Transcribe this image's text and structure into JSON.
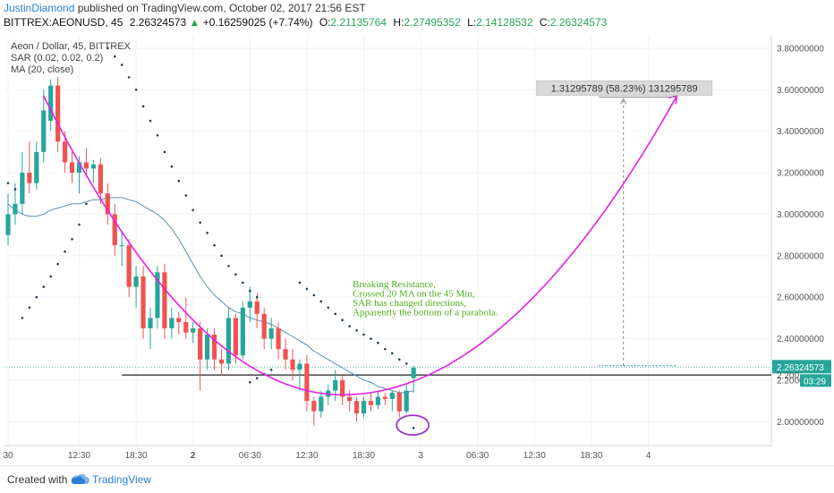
{
  "header": {
    "author": "JustinDiamond",
    "published_text": "published on TradingView.com, October 02, 2017 21:56 EST",
    "symbol": "BITTREX:AEONUSD, 45",
    "last": "2.26324573",
    "change_arrow": "▲",
    "change": "+0.16259025 (+7.74%)",
    "o_label": "O:",
    "o_value": "2.21135764",
    "h_label": "H:",
    "h_value": "2.27495352",
    "l_label": "L:",
    "l_value": "2.14128532",
    "c_label": "C:",
    "c_value": "2.26324573"
  },
  "footer": {
    "created_with": "Created with",
    "brand": "TradingView",
    "logo_icon": "tradingview-cloud-icon"
  },
  "colors": {
    "up": "#26a69a",
    "down": "#ef5350",
    "ma": "#5b8fb0",
    "sar": "#1f3d5c",
    "parabola": "#e61fe6",
    "annotation": "#4caf1a",
    "support": "#222222",
    "price_label_bg": "#26a69a",
    "circle": "#9b30d0"
  },
  "chart_data": {
    "type": "candlestick",
    "legend": [
      "Aeon / Dollar, 45, BITTREX",
      "SAR (0.02, 0.02, 0.2)",
      "MA (20, close)"
    ],
    "y_axis": {
      "ticks": [
        "2.00000000",
        "2.20000000",
        "2.40000000",
        "2.60000000",
        "2.80000000",
        "3.00000000",
        "3.20000000",
        "3.40000000",
        "3.60000000",
        "3.80000000"
      ],
      "tick_values": [
        2.0,
        2.2,
        2.4,
        2.6,
        2.8,
        3.0,
        3.2,
        3.4,
        3.6,
        3.8
      ],
      "range": [
        1.885,
        3.86
      ]
    },
    "x_axis": {
      "ticks": [
        "30",
        "12:30",
        "18:30",
        "2",
        "06:30",
        "12:30",
        "18:30",
        "3",
        "06:30",
        "12:30",
        "18:30",
        "4"
      ],
      "tick_bar_index": [
        0,
        10,
        18,
        26,
        34,
        42,
        50,
        58,
        66,
        74,
        82,
        90
      ],
      "bold_ticks": [
        "2"
      ]
    },
    "candles": [
      {
        "o": 2.9,
        "h": 3.1,
        "l": 2.85,
        "c": 3.0
      },
      {
        "o": 3.0,
        "h": 3.15,
        "l": 2.95,
        "c": 3.05
      },
      {
        "o": 3.05,
        "h": 3.3,
        "l": 3.0,
        "c": 3.2
      },
      {
        "o": 3.2,
        "h": 3.35,
        "l": 3.1,
        "c": 3.15
      },
      {
        "o": 3.15,
        "h": 3.35,
        "l": 3.12,
        "c": 3.3
      },
      {
        "o": 3.3,
        "h": 3.6,
        "l": 3.25,
        "c": 3.5
      },
      {
        "o": 3.45,
        "h": 3.65,
        "l": 3.4,
        "c": 3.62
      },
      {
        "o": 3.62,
        "h": 3.66,
        "l": 3.3,
        "c": 3.35
      },
      {
        "o": 3.35,
        "h": 3.4,
        "l": 3.2,
        "c": 3.25
      },
      {
        "o": 3.25,
        "h": 3.3,
        "l": 3.15,
        "c": 3.2
      },
      {
        "o": 3.2,
        "h": 3.28,
        "l": 3.1,
        "c": 3.25
      },
      {
        "o": 3.25,
        "h": 3.32,
        "l": 3.18,
        "c": 3.22
      },
      {
        "o": 3.22,
        "h": 3.26,
        "l": 3.15,
        "c": 3.24
      },
      {
        "o": 3.24,
        "h": 3.27,
        "l": 3.05,
        "c": 3.1
      },
      {
        "o": 3.1,
        "h": 3.15,
        "l": 2.95,
        "c": 3.0
      },
      {
        "o": 3.0,
        "h": 3.05,
        "l": 2.8,
        "c": 2.85
      },
      {
        "o": 2.85,
        "h": 2.92,
        "l": 2.75,
        "c": 2.85
      },
      {
        "o": 2.85,
        "h": 2.88,
        "l": 2.6,
        "c": 2.65
      },
      {
        "o": 2.65,
        "h": 2.75,
        "l": 2.55,
        "c": 2.7
      },
      {
        "o": 2.7,
        "h": 2.75,
        "l": 2.4,
        "c": 2.45
      },
      {
        "o": 2.45,
        "h": 2.55,
        "l": 2.35,
        "c": 2.5
      },
      {
        "o": 2.5,
        "h": 2.75,
        "l": 2.45,
        "c": 2.72
      },
      {
        "o": 2.72,
        "h": 2.76,
        "l": 2.4,
        "c": 2.45
      },
      {
        "o": 2.45,
        "h": 2.55,
        "l": 2.4,
        "c": 2.5
      },
      {
        "o": 2.5,
        "h": 2.53,
        "l": 2.42,
        "c": 2.48
      },
      {
        "o": 2.48,
        "h": 2.6,
        "l": 2.4,
        "c": 2.43
      },
      {
        "o": 2.43,
        "h": 2.48,
        "l": 2.38,
        "c": 2.45
      },
      {
        "o": 2.45,
        "h": 2.48,
        "l": 2.15,
        "c": 2.3
      },
      {
        "o": 2.3,
        "h": 2.45,
        "l": 2.25,
        "c": 2.42
      },
      {
        "o": 2.42,
        "h": 2.45,
        "l": 2.25,
        "c": 2.3
      },
      {
        "o": 2.3,
        "h": 2.35,
        "l": 2.22,
        "c": 2.28
      },
      {
        "o": 2.28,
        "h": 2.55,
        "l": 2.25,
        "c": 2.5
      },
      {
        "o": 2.5,
        "h": 2.52,
        "l": 2.28,
        "c": 2.32
      },
      {
        "o": 2.32,
        "h": 2.58,
        "l": 2.3,
        "c": 2.55
      },
      {
        "o": 2.55,
        "h": 2.65,
        "l": 2.48,
        "c": 2.58
      },
      {
        "o": 2.58,
        "h": 2.62,
        "l": 2.45,
        "c": 2.52
      },
      {
        "o": 2.52,
        "h": 2.55,
        "l": 2.35,
        "c": 2.4
      },
      {
        "o": 2.4,
        "h": 2.5,
        "l": 2.35,
        "c": 2.45
      },
      {
        "o": 2.45,
        "h": 2.48,
        "l": 2.3,
        "c": 2.35
      },
      {
        "o": 2.35,
        "h": 2.4,
        "l": 2.25,
        "c": 2.3
      },
      {
        "o": 2.3,
        "h": 2.35,
        "l": 2.2,
        "c": 2.25
      },
      {
        "o": 2.25,
        "h": 2.3,
        "l": 2.15,
        "c": 2.28
      },
      {
        "o": 2.28,
        "h": 2.32,
        "l": 2.05,
        "c": 2.1
      },
      {
        "o": 2.1,
        "h": 2.12,
        "l": 1.98,
        "c": 2.05
      },
      {
        "o": 2.05,
        "h": 2.15,
        "l": 2.02,
        "c": 2.12
      },
      {
        "o": 2.12,
        "h": 2.18,
        "l": 2.08,
        "c": 2.15
      },
      {
        "o": 2.15,
        "h": 2.25,
        "l": 2.1,
        "c": 2.2
      },
      {
        "o": 2.2,
        "h": 2.22,
        "l": 2.08,
        "c": 2.12
      },
      {
        "o": 2.12,
        "h": 2.15,
        "l": 2.05,
        "c": 2.1
      },
      {
        "o": 2.1,
        "h": 2.12,
        "l": 2.0,
        "c": 2.04
      },
      {
        "o": 2.04,
        "h": 2.12,
        "l": 2.02,
        "c": 2.1
      },
      {
        "o": 2.1,
        "h": 2.14,
        "l": 2.05,
        "c": 2.08
      },
      {
        "o": 2.08,
        "h": 2.15,
        "l": 2.06,
        "c": 2.12
      },
      {
        "o": 2.12,
        "h": 2.14,
        "l": 2.08,
        "c": 2.11
      },
      {
        "o": 2.11,
        "h": 2.15,
        "l": 2.05,
        "c": 2.14
      },
      {
        "o": 2.14,
        "h": 2.15,
        "l": 2.02,
        "c": 2.05
      },
      {
        "o": 2.05,
        "h": 2.18,
        "l": 2.04,
        "c": 2.15
      },
      {
        "o": 2.21,
        "h": 2.27,
        "l": 2.14,
        "c": 2.26
      }
    ],
    "ma": [
      3.05,
      3.02,
      3.0,
      2.99,
      2.99,
      3.0,
      3.02,
      3.03,
      3.04,
      3.05,
      3.05,
      3.06,
      3.07,
      3.07,
      3.08,
      3.08,
      3.08,
      3.07,
      3.06,
      3.04,
      3.02,
      3.0,
      2.97,
      2.93,
      2.88,
      2.82,
      2.76,
      2.7,
      2.65,
      2.61,
      2.58,
      2.55,
      2.53,
      2.52,
      2.5,
      2.49,
      2.48,
      2.47,
      2.45,
      2.43,
      2.41,
      2.39,
      2.37,
      2.34,
      2.32,
      2.3,
      2.28,
      2.26,
      2.24,
      2.22,
      2.2,
      2.19,
      2.17,
      2.16,
      2.15,
      2.14,
      2.14,
      2.15
    ],
    "sar_dots": [
      [
        0,
        3.15
      ],
      [
        1,
        3.12
      ],
      [
        2,
        2.5
      ],
      [
        3,
        2.55
      ],
      [
        4,
        2.6
      ],
      [
        5,
        2.65
      ],
      [
        6,
        2.7
      ],
      [
        7,
        2.76
      ],
      [
        8,
        2.82
      ],
      [
        9,
        2.88
      ],
      [
        10,
        2.95
      ],
      [
        11,
        3.05
      ],
      [
        14,
        3.8
      ],
      [
        15,
        3.76
      ],
      [
        16,
        3.72
      ],
      [
        17,
        3.66
      ],
      [
        18,
        3.6
      ],
      [
        19,
        3.52
      ],
      [
        20,
        3.45
      ],
      [
        21,
        3.38
      ],
      [
        22,
        3.3
      ],
      [
        23,
        3.23
      ],
      [
        24,
        3.16
      ],
      [
        25,
        3.09
      ],
      [
        26,
        3.02
      ],
      [
        27,
        2.96
      ],
      [
        28,
        2.91
      ],
      [
        29,
        2.85
      ],
      [
        30,
        2.8
      ],
      [
        31,
        2.75
      ],
      [
        32,
        2.71
      ],
      [
        33,
        2.67
      ],
      [
        34,
        2.63
      ],
      [
        35,
        2.6
      ],
      [
        34,
        2.19
      ],
      [
        35,
        2.21
      ],
      [
        36,
        2.23
      ],
      [
        37,
        2.25
      ],
      [
        41,
        2.67
      ],
      [
        42,
        2.64
      ],
      [
        43,
        2.61
      ],
      [
        44,
        2.58
      ],
      [
        45,
        2.55
      ],
      [
        46,
        2.52
      ],
      [
        47,
        2.49
      ],
      [
        48,
        2.46
      ],
      [
        49,
        2.44
      ],
      [
        50,
        2.42
      ],
      [
        51,
        2.4
      ],
      [
        52,
        2.38
      ],
      [
        53,
        2.35
      ],
      [
        54,
        2.33
      ],
      [
        55,
        2.3
      ],
      [
        56,
        2.28
      ],
      [
        57,
        1.97
      ]
    ],
    "current_price": "2.26324573",
    "countdown": "03:29",
    "measure_label": "1.31295789 (58.23%) 131295789",
    "annotation": [
      "Breaking Resistance,",
      "Crossed 20 MA on the 45 Min,",
      "SAR has changed directions,",
      "Apparently the bottom of a parabola."
    ],
    "support_level": 2.225,
    "parabola": {
      "vertex_bar": 47,
      "vertex_price": 2.13,
      "start_bar": 5,
      "start_price": 3.57,
      "end_bar": 94,
      "end_price": 3.57
    },
    "measure": {
      "start_bar": 84,
      "end_bar": 94,
      "base_price": 2.27,
      "target_price": 3.565,
      "arrow_bar": 86.5
    },
    "circle": {
      "bar": 57,
      "price": 1.975
    }
  }
}
